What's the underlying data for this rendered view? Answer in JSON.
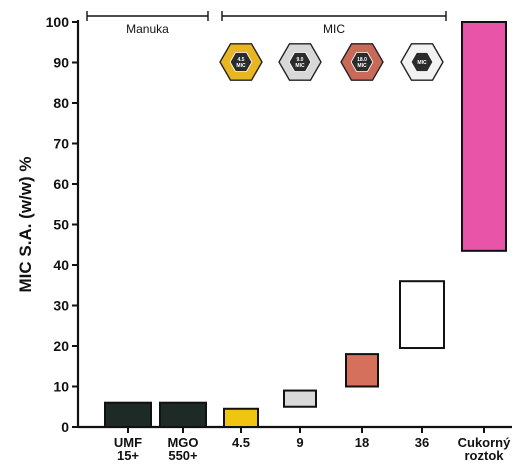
{
  "chart_data": {
    "type": "floating-bar",
    "ylabel": "MIC S.A. (w/w) %",
    "ylim": [
      0,
      100
    ],
    "yticks": [
      0,
      10,
      20,
      30,
      40,
      50,
      60,
      70,
      80,
      90,
      100
    ],
    "grid": false,
    "categories": [
      {
        "lines": [
          "UMF",
          "15+"
        ],
        "low": 0,
        "high": 6,
        "color": "#1e2a26"
      },
      {
        "lines": [
          "MGO",
          "550+"
        ],
        "low": 0,
        "high": 6,
        "color": "#1e2a26"
      },
      {
        "lines": [
          "4.5"
        ],
        "low": 0,
        "high": 4.5,
        "color": "#f1c40f"
      },
      {
        "lines": [
          "9"
        ],
        "low": 5,
        "high": 9,
        "color": "#d9d9d9"
      },
      {
        "lines": [
          "18"
        ],
        "low": 10,
        "high": 18,
        "color": "#d4705c"
      },
      {
        "lines": [
          "36"
        ],
        "low": 19.5,
        "high": 36,
        "color": "#ffffff"
      },
      {
        "lines": [
          "Cukorný",
          "roztok"
        ],
        "low": 43.5,
        "high": 100,
        "color": "#e754a8"
      }
    ],
    "groups": [
      {
        "label": "Manuka",
        "from": 0,
        "to": 1
      },
      {
        "label": "MIC",
        "from": 2,
        "to": 5
      }
    ],
    "badges": [
      {
        "category": 2,
        "fill": "#e8b620",
        "inner": "#2b2b2b",
        "text": [
          "4.5",
          "MIC"
        ]
      },
      {
        "category": 3,
        "fill": "#d8d8d8",
        "inner": "#2b2b2b",
        "text": [
          "9.0",
          "MIC"
        ]
      },
      {
        "category": 4,
        "fill": "#c96a58",
        "inner": "#2b2b2b",
        "text": [
          "18.0",
          "MIC"
        ]
      },
      {
        "category": 5,
        "fill": "#f2f2f2",
        "inner": "#2b2b2b",
        "text": [
          "MIC"
        ]
      }
    ]
  }
}
